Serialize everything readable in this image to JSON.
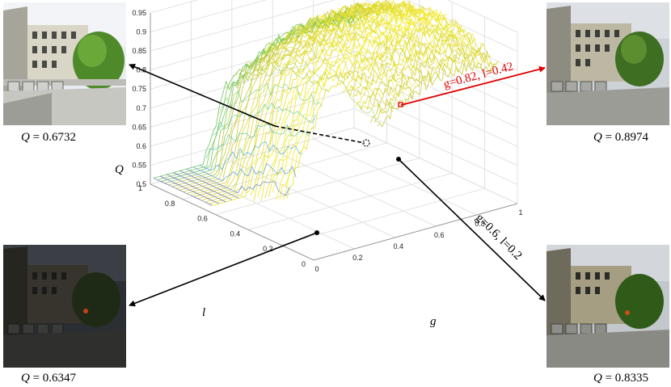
{
  "photos": [
    {
      "id": "top-left",
      "q_prefix": "Q",
      "q_value": "= 0.6732",
      "brightness": "normal"
    },
    {
      "id": "bottom-left",
      "q_prefix": "Q",
      "q_value": "= 0.6347",
      "brightness": "dark"
    },
    {
      "id": "top-right",
      "q_prefix": "Q",
      "q_value": "= 0.8974",
      "brightness": "normal"
    },
    {
      "id": "bottom-right",
      "q_prefix": "Q",
      "q_value": "= 0.8335",
      "brightness": "bright"
    }
  ],
  "annotations": {
    "red": "g=0.82, l=0.42",
    "black": "g=0.6, l=0.2"
  },
  "chart_data": {
    "type": "surface-3d",
    "xlabel": "g",
    "ylabel": "l",
    "zlabel": "Q",
    "x_ticks": [
      "0",
      "0.2",
      "0.4",
      "0.6",
      "0.8",
      "1"
    ],
    "y_ticks": [
      "0",
      "0.2",
      "0.4",
      "0.6",
      "0.8",
      "1"
    ],
    "z_ticks": [
      "0.5",
      "0.55",
      "0.6",
      "0.65",
      "0.7",
      "0.75",
      "0.8",
      "0.85",
      "0.9",
      "0.95"
    ],
    "xlim": [
      0,
      1
    ],
    "ylim": [
      0,
      1
    ],
    "zlim": [
      0.5,
      0.95
    ],
    "grid": true,
    "colormap": "parula",
    "points": [
      {
        "g": 0.82,
        "l": 0.42,
        "Q": 0.8974,
        "marker": "red-square"
      },
      {
        "g": 0.6,
        "l": 0.2,
        "Q": 0.8335,
        "marker": "black-dot"
      }
    ]
  }
}
